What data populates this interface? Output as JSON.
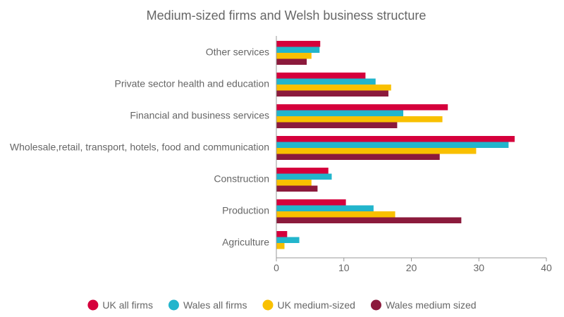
{
  "chart_data": {
    "type": "bar",
    "orientation": "horizontal",
    "title": "Medium-sized firms and Welsh business structure",
    "xlabel": "",
    "ylabel": "",
    "xlim": [
      0,
      40
    ],
    "x_ticks": [
      "0",
      "10",
      "20",
      "30",
      "40"
    ],
    "legend_position": "bottom",
    "grid": false,
    "categories": [
      "Other services",
      "Private sector health and education",
      "Financial and business services",
      "Wholesale,retail, transport, hotels, food and communication",
      "Construction",
      "Production",
      "Agriculture"
    ],
    "series": [
      {
        "name": "UK all firms",
        "color": "#D5003C",
        "values": [
          6.5,
          13.2,
          25.4,
          35.3,
          7.7,
          10.3,
          1.6
        ]
      },
      {
        "name": "Wales all firms",
        "color": "#22B5CC",
        "values": [
          6.4,
          14.7,
          18.8,
          34.4,
          8.2,
          14.4,
          3.4
        ]
      },
      {
        "name": "UK medium-sized",
        "color": "#F9C000",
        "values": [
          5.2,
          17.0,
          24.6,
          29.6,
          5.2,
          17.6,
          1.2
        ]
      },
      {
        "name": "Wales medium sized",
        "color": "#8B1A3C",
        "values": [
          4.5,
          16.6,
          17.9,
          24.2,
          6.1,
          27.4,
          0
        ]
      }
    ]
  }
}
